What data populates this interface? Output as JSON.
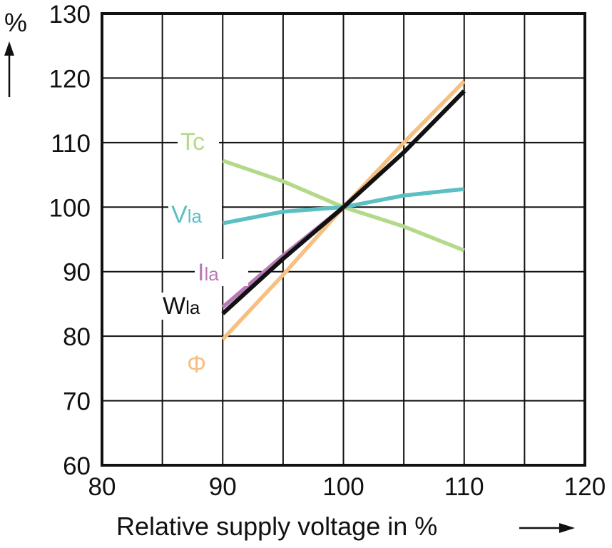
{
  "chart_data": {
    "type": "line",
    "xlabel": "Relative supply voltage in %",
    "ylabel": "%",
    "xlim": [
      80,
      120
    ],
    "ylim": [
      60,
      130
    ],
    "xticks": [
      80,
      90,
      100,
      110,
      120
    ],
    "yticks": [
      60,
      70,
      80,
      90,
      100,
      110,
      120,
      130
    ],
    "grid": true,
    "series": [
      {
        "name": "Tc",
        "label_main": "Tc",
        "label_sub": "",
        "color": "#b5d98a",
        "x": [
          90,
          95,
          100,
          105,
          110
        ],
        "y": [
          107.2,
          104.0,
          100.0,
          97.0,
          93.3
        ]
      },
      {
        "name": "Vla",
        "label_main": "V",
        "label_sub": "la",
        "color": "#5bbfc4",
        "x": [
          90,
          95,
          100,
          105,
          110
        ],
        "y": [
          97.5,
          99.3,
          100.0,
          101.8,
          102.8
        ]
      },
      {
        "name": "Ila",
        "label_main": "I",
        "label_sub": "la",
        "color": "#b97ab8",
        "x": [
          90,
          95,
          100,
          105,
          110
        ],
        "y": [
          84.5,
          92.5,
          100.0,
          108.5,
          118.0
        ]
      },
      {
        "name": "Φ",
        "label_main": "Φ",
        "label_sub": "",
        "color": "#f7bf80",
        "x": [
          90,
          95,
          100,
          105,
          110
        ],
        "y": [
          79.5,
          89.5,
          100.0,
          110.0,
          119.5
        ]
      },
      {
        "name": "Wla",
        "label_main": "W",
        "label_sub": "la",
        "color": "#111111",
        "x": [
          90,
          95,
          100,
          105,
          110
        ],
        "y": [
          83.5,
          92.0,
          100.0,
          108.5,
          118.0
        ]
      }
    ]
  }
}
